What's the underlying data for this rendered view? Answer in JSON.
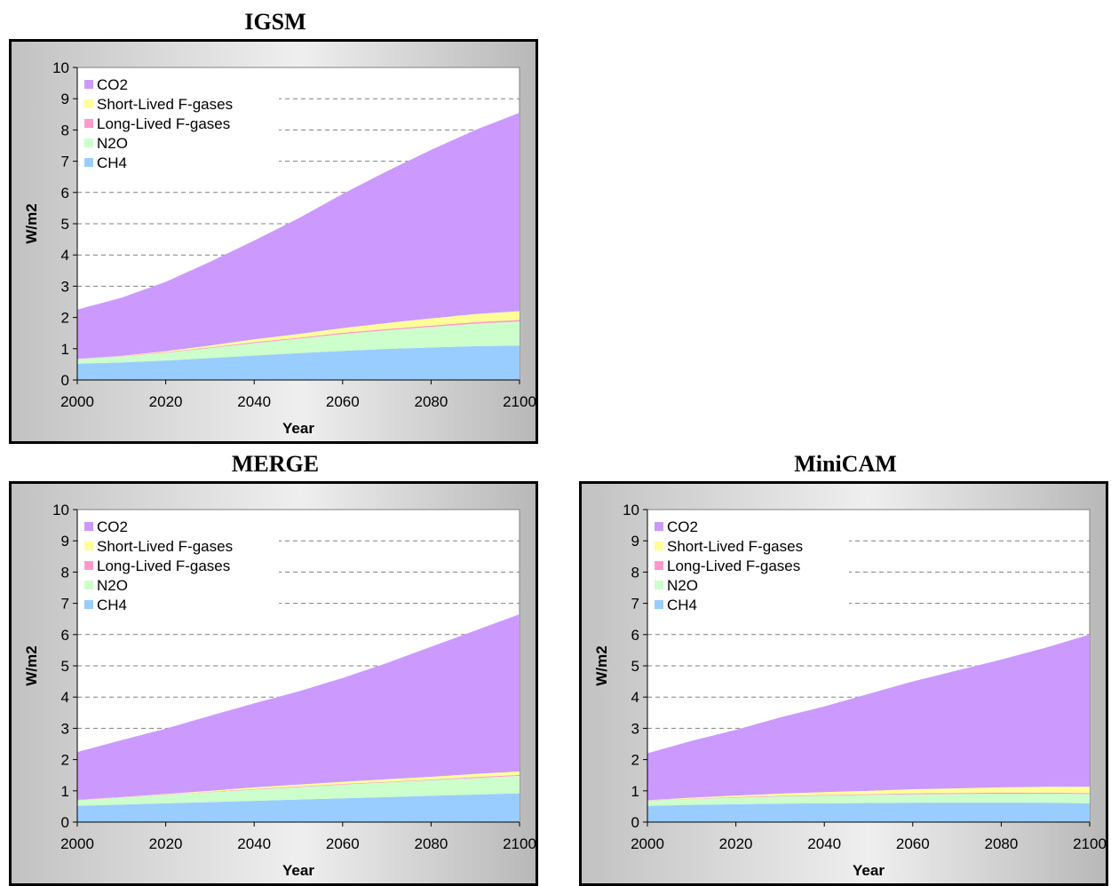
{
  "chart_data": [
    {
      "type": "area",
      "stacked": true,
      "title": "IGSM",
      "xlabel": "Year",
      "ylabel": "W/m2",
      "xlim": [
        2000,
        2100
      ],
      "ylim": [
        0,
        10
      ],
      "x": [
        2000,
        2010,
        2020,
        2030,
        2040,
        2050,
        2060,
        2070,
        2080,
        2090,
        2100
      ],
      "xticks": [
        "2000",
        "2020",
        "2040",
        "2060",
        "2080",
        "2100"
      ],
      "yticks": [
        "0",
        "1",
        "2",
        "3",
        "4",
        "5",
        "6",
        "7",
        "8",
        "9",
        "10"
      ],
      "grid": "horizontal dashed",
      "legend": "top-left",
      "series": [
        {
          "name": "CH4",
          "color": "#99ccff",
          "values": [
            0.52,
            0.56,
            0.62,
            0.7,
            0.78,
            0.86,
            0.93,
            0.99,
            1.04,
            1.08,
            1.1
          ]
        },
        {
          "name": "N2O",
          "color": "#ccffcc",
          "values": [
            0.15,
            0.19,
            0.25,
            0.32,
            0.4,
            0.46,
            0.54,
            0.6,
            0.66,
            0.72,
            0.77
          ]
        },
        {
          "name": "Long-Lived F-gases",
          "color": "#ff99cc",
          "values": [
            0.01,
            0.01,
            0.02,
            0.02,
            0.03,
            0.03,
            0.04,
            0.04,
            0.04,
            0.05,
            0.05
          ]
        },
        {
          "name": "Short-Lived F-gases",
          "color": "#ffff99",
          "values": [
            0.0,
            0.01,
            0.03,
            0.06,
            0.09,
            0.12,
            0.15,
            0.19,
            0.23,
            0.26,
            0.28
          ]
        },
        {
          "name": "CO2",
          "color": "#cc99ff",
          "values": [
            1.57,
            1.86,
            2.22,
            2.68,
            3.16,
            3.7,
            4.29,
            4.86,
            5.39,
            5.89,
            6.35
          ]
        }
      ]
    },
    {
      "type": "area",
      "stacked": true,
      "title": "MERGE",
      "xlabel": "Year",
      "ylabel": "W/m2",
      "xlim": [
        2000,
        2100
      ],
      "ylim": [
        0,
        10
      ],
      "x": [
        2000,
        2010,
        2020,
        2030,
        2040,
        2050,
        2060,
        2070,
        2080,
        2090,
        2100
      ],
      "xticks": [
        "2000",
        "2020",
        "2040",
        "2060",
        "2080",
        "2100"
      ],
      "yticks": [
        "0",
        "1",
        "2",
        "3",
        "4",
        "5",
        "6",
        "7",
        "8",
        "9",
        "10"
      ],
      "grid": "horizontal dashed",
      "legend": "top-left",
      "series": [
        {
          "name": "CH4",
          "color": "#99ccff",
          "values": [
            0.52,
            0.56,
            0.6,
            0.64,
            0.68,
            0.72,
            0.76,
            0.8,
            0.84,
            0.88,
            0.92
          ]
        },
        {
          "name": "N2O",
          "color": "#ccffcc",
          "values": [
            0.18,
            0.22,
            0.27,
            0.32,
            0.36,
            0.4,
            0.44,
            0.47,
            0.5,
            0.53,
            0.56
          ]
        },
        {
          "name": "Long-Lived F-gases",
          "color": "#ff99cc",
          "values": [
            0.01,
            0.01,
            0.01,
            0.01,
            0.02,
            0.02,
            0.02,
            0.02,
            0.02,
            0.03,
            0.03
          ]
        },
        {
          "name": "Short-Lived F-gases",
          "color": "#ffff99",
          "values": [
            0.0,
            0.01,
            0.02,
            0.03,
            0.05,
            0.06,
            0.07,
            0.08,
            0.09,
            0.1,
            0.11
          ]
        },
        {
          "name": "CO2",
          "color": "#cc99ff",
          "values": [
            1.53,
            1.82,
            2.09,
            2.4,
            2.69,
            2.98,
            3.32,
            3.72,
            4.16,
            4.59,
            5.03
          ]
        }
      ]
    },
    {
      "type": "area",
      "stacked": true,
      "title": "MiniCAM",
      "xlabel": "Year",
      "ylabel": "W/m2",
      "xlim": [
        2000,
        2100
      ],
      "ylim": [
        0,
        10
      ],
      "x": [
        2000,
        2010,
        2020,
        2030,
        2040,
        2050,
        2060,
        2070,
        2080,
        2090,
        2100
      ],
      "xticks": [
        "2000",
        "2020",
        "2040",
        "2060",
        "2080",
        "2100"
      ],
      "yticks": [
        "0",
        "1",
        "2",
        "3",
        "4",
        "5",
        "6",
        "7",
        "8",
        "9",
        "10"
      ],
      "grid": "horizontal dashed",
      "legend": "top-left",
      "series": [
        {
          "name": "CH4",
          "color": "#99ccff",
          "values": [
            0.52,
            0.55,
            0.57,
            0.59,
            0.6,
            0.61,
            0.62,
            0.62,
            0.62,
            0.62,
            0.6
          ]
        },
        {
          "name": "N2O",
          "color": "#ccffcc",
          "values": [
            0.17,
            0.19,
            0.21,
            0.23,
            0.25,
            0.26,
            0.27,
            0.28,
            0.29,
            0.29,
            0.3
          ]
        },
        {
          "name": "Long-Lived F-gases",
          "color": "#ff99cc",
          "values": [
            0.01,
            0.01,
            0.02,
            0.02,
            0.02,
            0.02,
            0.03,
            0.03,
            0.03,
            0.03,
            0.03
          ]
        },
        {
          "name": "Short-Lived F-gases",
          "color": "#ffff99",
          "values": [
            0.0,
            0.03,
            0.05,
            0.07,
            0.09,
            0.11,
            0.13,
            0.15,
            0.17,
            0.19,
            0.2
          ]
        },
        {
          "name": "CO2",
          "color": "#cc99ff",
          "values": [
            1.5,
            1.82,
            2.1,
            2.44,
            2.74,
            3.1,
            3.45,
            3.77,
            4.09,
            4.45,
            4.87
          ]
        }
      ]
    }
  ]
}
